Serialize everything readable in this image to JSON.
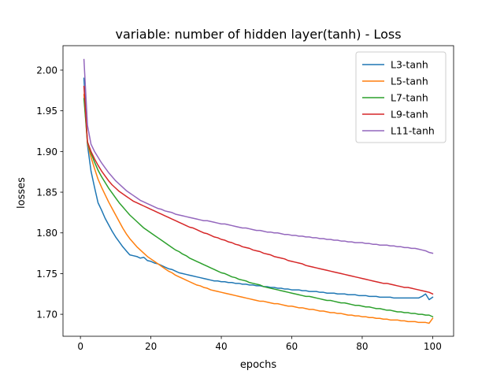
{
  "chart_data": {
    "type": "line",
    "title": "variable: number of hidden layer(tanh) - Loss",
    "xlabel": "epochs",
    "ylabel": "losses",
    "xlim": [
      -4.95,
      105.95
    ],
    "ylim": [
      1.673,
      2.03
    ],
    "xticks": [
      0,
      20,
      40,
      60,
      80,
      100
    ],
    "yticks": [
      1.7,
      1.75,
      1.8,
      1.85,
      1.9,
      1.95,
      2.0
    ],
    "ytick_labels": [
      "1.70",
      "1.75",
      "1.80",
      "1.85",
      "1.90",
      "1.95",
      "2.00"
    ],
    "grid": false,
    "legend_position": "top-right",
    "series": [
      {
        "name": "L3-tanh",
        "color": "#1f77b4",
        "x": [
          1,
          2,
          3,
          4,
          5,
          6,
          7,
          8,
          9,
          10,
          11,
          12,
          13,
          14,
          15,
          16,
          17,
          18,
          19,
          20,
          21,
          22,
          23,
          24,
          25,
          26,
          27,
          28,
          29,
          30,
          31,
          32,
          33,
          34,
          35,
          36,
          37,
          38,
          39,
          40,
          41,
          42,
          43,
          44,
          45,
          46,
          47,
          48,
          49,
          50,
          51,
          52,
          53,
          54,
          55,
          56,
          57,
          58,
          59,
          60,
          61,
          62,
          63,
          64,
          65,
          66,
          67,
          68,
          69,
          70,
          71,
          72,
          73,
          74,
          75,
          76,
          77,
          78,
          79,
          80,
          81,
          82,
          83,
          84,
          85,
          86,
          87,
          88,
          89,
          90,
          91,
          92,
          93,
          94,
          95,
          96,
          97,
          98,
          99,
          100
        ],
        "y": [
          1.99,
          1.908,
          1.876,
          1.856,
          1.837,
          1.828,
          1.818,
          1.81,
          1.802,
          1.795,
          1.789,
          1.783,
          1.778,
          1.773,
          1.772,
          1.771,
          1.769,
          1.77,
          1.766,
          1.765,
          1.763,
          1.762,
          1.76,
          1.758,
          1.756,
          1.755,
          1.753,
          1.751,
          1.75,
          1.749,
          1.748,
          1.747,
          1.746,
          1.745,
          1.744,
          1.743,
          1.742,
          1.741,
          1.741,
          1.74,
          1.74,
          1.739,
          1.739,
          1.738,
          1.738,
          1.737,
          1.737,
          1.736,
          1.736,
          1.735,
          1.735,
          1.734,
          1.734,
          1.733,
          1.733,
          1.732,
          1.732,
          1.731,
          1.731,
          1.73,
          1.73,
          1.73,
          1.729,
          1.729,
          1.728,
          1.728,
          1.728,
          1.727,
          1.727,
          1.726,
          1.726,
          1.726,
          1.725,
          1.725,
          1.725,
          1.724,
          1.724,
          1.724,
          1.723,
          1.723,
          1.723,
          1.722,
          1.722,
          1.722,
          1.721,
          1.721,
          1.721,
          1.721,
          1.72,
          1.72,
          1.72,
          1.72,
          1.72,
          1.72,
          1.72,
          1.72,
          1.722,
          1.725,
          1.718,
          1.721
        ]
      },
      {
        "name": "L5-tanh",
        "color": "#ff7f0e",
        "x": [
          1,
          2,
          3,
          4,
          5,
          6,
          7,
          8,
          9,
          10,
          11,
          12,
          13,
          14,
          15,
          16,
          17,
          18,
          19,
          20,
          21,
          22,
          23,
          24,
          25,
          26,
          27,
          28,
          29,
          30,
          31,
          32,
          33,
          34,
          35,
          36,
          37,
          38,
          39,
          40,
          41,
          42,
          43,
          44,
          45,
          46,
          47,
          48,
          49,
          50,
          51,
          52,
          53,
          54,
          55,
          56,
          57,
          58,
          59,
          60,
          61,
          62,
          63,
          64,
          65,
          66,
          67,
          68,
          69,
          70,
          71,
          72,
          73,
          74,
          75,
          76,
          77,
          78,
          79,
          80,
          81,
          82,
          83,
          84,
          85,
          86,
          87,
          88,
          89,
          90,
          91,
          92,
          93,
          94,
          95,
          96,
          97,
          98,
          99,
          100
        ],
        "y": [
          1.97,
          1.91,
          1.893,
          1.879,
          1.866,
          1.856,
          1.847,
          1.838,
          1.83,
          1.822,
          1.814,
          1.806,
          1.799,
          1.793,
          1.788,
          1.783,
          1.779,
          1.775,
          1.771,
          1.768,
          1.765,
          1.762,
          1.759,
          1.756,
          1.753,
          1.751,
          1.748,
          1.746,
          1.744,
          1.742,
          1.74,
          1.738,
          1.736,
          1.735,
          1.733,
          1.732,
          1.73,
          1.729,
          1.728,
          1.727,
          1.726,
          1.725,
          1.724,
          1.723,
          1.722,
          1.721,
          1.72,
          1.719,
          1.718,
          1.717,
          1.716,
          1.716,
          1.715,
          1.714,
          1.713,
          1.713,
          1.712,
          1.711,
          1.71,
          1.71,
          1.709,
          1.708,
          1.708,
          1.707,
          1.706,
          1.706,
          1.705,
          1.704,
          1.704,
          1.703,
          1.702,
          1.702,
          1.701,
          1.701,
          1.7,
          1.699,
          1.699,
          1.698,
          1.698,
          1.697,
          1.697,
          1.696,
          1.696,
          1.695,
          1.695,
          1.694,
          1.694,
          1.693,
          1.693,
          1.693,
          1.692,
          1.692,
          1.691,
          1.691,
          1.691,
          1.69,
          1.69,
          1.69,
          1.689,
          1.695
        ]
      },
      {
        "name": "L7-tanh",
        "color": "#2ca02c",
        "x": [
          1,
          2,
          3,
          4,
          5,
          6,
          7,
          8,
          9,
          10,
          11,
          12,
          13,
          14,
          15,
          16,
          17,
          18,
          19,
          20,
          21,
          22,
          23,
          24,
          25,
          26,
          27,
          28,
          29,
          30,
          31,
          32,
          33,
          34,
          35,
          36,
          37,
          38,
          39,
          40,
          41,
          42,
          43,
          44,
          45,
          46,
          47,
          48,
          49,
          50,
          51,
          52,
          53,
          54,
          55,
          56,
          57,
          58,
          59,
          60,
          61,
          62,
          63,
          64,
          65,
          66,
          67,
          68,
          69,
          70,
          71,
          72,
          73,
          74,
          75,
          76,
          77,
          78,
          79,
          80,
          81,
          82,
          83,
          84,
          85,
          86,
          87,
          88,
          89,
          90,
          91,
          92,
          93,
          94,
          95,
          96,
          97,
          98,
          99,
          100
        ],
        "y": [
          1.965,
          1.911,
          1.898,
          1.887,
          1.877,
          1.869,
          1.862,
          1.855,
          1.849,
          1.843,
          1.837,
          1.832,
          1.827,
          1.822,
          1.818,
          1.814,
          1.81,
          1.806,
          1.803,
          1.8,
          1.797,
          1.794,
          1.791,
          1.788,
          1.785,
          1.782,
          1.779,
          1.777,
          1.774,
          1.772,
          1.769,
          1.767,
          1.765,
          1.763,
          1.761,
          1.759,
          1.757,
          1.755,
          1.753,
          1.751,
          1.75,
          1.748,
          1.746,
          1.745,
          1.743,
          1.742,
          1.741,
          1.739,
          1.738,
          1.737,
          1.736,
          1.734,
          1.733,
          1.732,
          1.731,
          1.73,
          1.729,
          1.728,
          1.727,
          1.726,
          1.725,
          1.724,
          1.723,
          1.722,
          1.722,
          1.721,
          1.72,
          1.719,
          1.718,
          1.717,
          1.717,
          1.716,
          1.715,
          1.714,
          1.714,
          1.713,
          1.712,
          1.711,
          1.711,
          1.71,
          1.709,
          1.709,
          1.708,
          1.707,
          1.707,
          1.706,
          1.705,
          1.705,
          1.704,
          1.703,
          1.703,
          1.702,
          1.702,
          1.701,
          1.701,
          1.7,
          1.7,
          1.699,
          1.699,
          1.697
        ]
      },
      {
        "name": "L9-tanh",
        "color": "#d62728",
        "x": [
          1,
          2,
          3,
          4,
          5,
          6,
          7,
          8,
          9,
          10,
          11,
          12,
          13,
          14,
          15,
          16,
          17,
          18,
          19,
          20,
          21,
          22,
          23,
          24,
          25,
          26,
          27,
          28,
          29,
          30,
          31,
          32,
          33,
          34,
          35,
          36,
          37,
          38,
          39,
          40,
          41,
          42,
          43,
          44,
          45,
          46,
          47,
          48,
          49,
          50,
          51,
          52,
          53,
          54,
          55,
          56,
          57,
          58,
          59,
          60,
          61,
          62,
          63,
          64,
          65,
          66,
          67,
          68,
          69,
          70,
          71,
          72,
          73,
          74,
          75,
          76,
          77,
          78,
          79,
          80,
          81,
          82,
          83,
          84,
          85,
          86,
          87,
          88,
          89,
          90,
          91,
          92,
          93,
          94,
          95,
          96,
          97,
          98,
          99,
          100
        ],
        "y": [
          1.98,
          1.912,
          1.9,
          1.891,
          1.883,
          1.876,
          1.87,
          1.864,
          1.859,
          1.855,
          1.851,
          1.848,
          1.845,
          1.842,
          1.839,
          1.837,
          1.835,
          1.833,
          1.831,
          1.829,
          1.827,
          1.825,
          1.823,
          1.821,
          1.819,
          1.817,
          1.815,
          1.813,
          1.811,
          1.809,
          1.807,
          1.806,
          1.804,
          1.802,
          1.8,
          1.799,
          1.797,
          1.795,
          1.794,
          1.792,
          1.791,
          1.789,
          1.788,
          1.786,
          1.785,
          1.783,
          1.782,
          1.781,
          1.779,
          1.778,
          1.777,
          1.775,
          1.774,
          1.773,
          1.771,
          1.77,
          1.769,
          1.768,
          1.766,
          1.765,
          1.764,
          1.763,
          1.762,
          1.76,
          1.759,
          1.758,
          1.757,
          1.756,
          1.755,
          1.754,
          1.753,
          1.752,
          1.751,
          1.75,
          1.749,
          1.748,
          1.747,
          1.746,
          1.745,
          1.744,
          1.743,
          1.742,
          1.741,
          1.74,
          1.739,
          1.738,
          1.738,
          1.737,
          1.736,
          1.735,
          1.734,
          1.733,
          1.733,
          1.732,
          1.731,
          1.73,
          1.729,
          1.728,
          1.727,
          1.725
        ]
      },
      {
        "name": "L11-tanh",
        "color": "#9467bd",
        "x": [
          1,
          2,
          3,
          4,
          5,
          6,
          7,
          8,
          9,
          10,
          11,
          12,
          13,
          14,
          15,
          16,
          17,
          18,
          19,
          20,
          21,
          22,
          23,
          24,
          25,
          26,
          27,
          28,
          29,
          30,
          31,
          32,
          33,
          34,
          35,
          36,
          37,
          38,
          39,
          40,
          41,
          42,
          43,
          44,
          45,
          46,
          47,
          48,
          49,
          50,
          51,
          52,
          53,
          54,
          55,
          56,
          57,
          58,
          59,
          60,
          61,
          62,
          63,
          64,
          65,
          66,
          67,
          68,
          69,
          70,
          71,
          72,
          73,
          74,
          75,
          76,
          77,
          78,
          79,
          80,
          81,
          82,
          83,
          84,
          85,
          86,
          87,
          88,
          89,
          90,
          91,
          92,
          93,
          94,
          95,
          96,
          97,
          98,
          99,
          100
        ],
        "y": [
          2.013,
          1.932,
          1.909,
          1.9,
          1.893,
          1.886,
          1.88,
          1.874,
          1.869,
          1.864,
          1.86,
          1.856,
          1.852,
          1.849,
          1.846,
          1.843,
          1.84,
          1.838,
          1.836,
          1.834,
          1.832,
          1.83,
          1.829,
          1.827,
          1.826,
          1.825,
          1.823,
          1.822,
          1.821,
          1.82,
          1.819,
          1.818,
          1.817,
          1.816,
          1.815,
          1.815,
          1.814,
          1.813,
          1.812,
          1.811,
          1.811,
          1.81,
          1.809,
          1.808,
          1.807,
          1.806,
          1.806,
          1.805,
          1.804,
          1.803,
          1.803,
          1.802,
          1.801,
          1.801,
          1.8,
          1.8,
          1.799,
          1.798,
          1.798,
          1.797,
          1.797,
          1.796,
          1.796,
          1.795,
          1.795,
          1.794,
          1.794,
          1.793,
          1.793,
          1.792,
          1.792,
          1.791,
          1.791,
          1.79,
          1.79,
          1.789,
          1.789,
          1.788,
          1.788,
          1.788,
          1.787,
          1.787,
          1.786,
          1.786,
          1.785,
          1.785,
          1.785,
          1.784,
          1.784,
          1.783,
          1.783,
          1.782,
          1.782,
          1.781,
          1.781,
          1.78,
          1.779,
          1.778,
          1.776,
          1.775
        ]
      }
    ]
  }
}
